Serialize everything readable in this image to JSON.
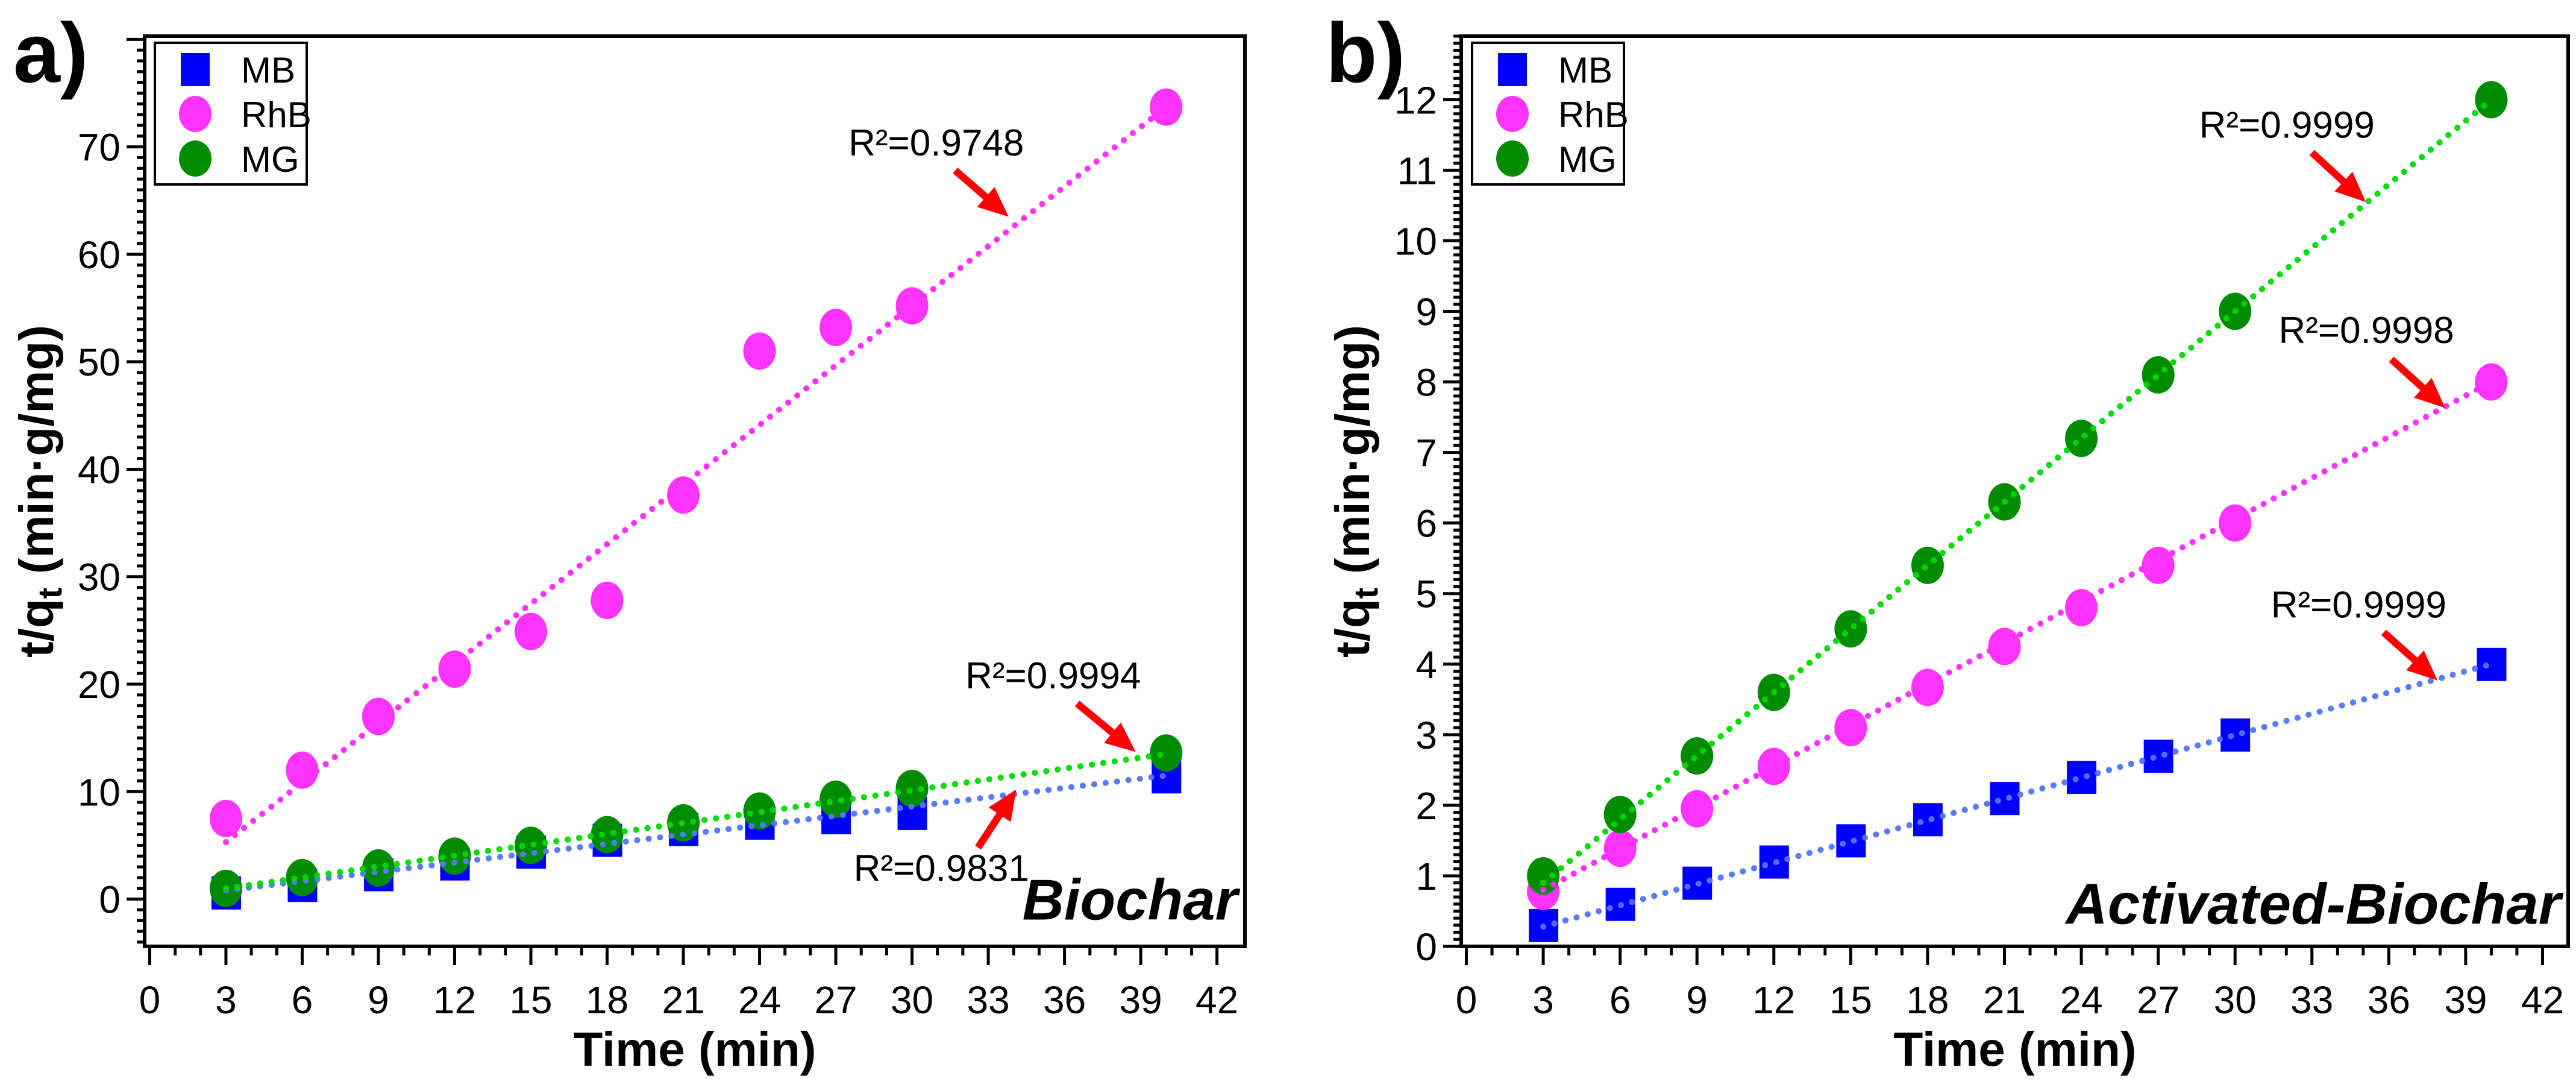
{
  "chart_data": [
    {
      "type": "scatter",
      "panel_label": "a)",
      "tag": "Biochar",
      "xlabel": "Time (min)",
      "ylabel": "t/q",
      "ylabel_sub": "t",
      "ylabel_unit": " (min·g/mg)",
      "xlim": [
        -0.2,
        43.1
      ],
      "ylim": [
        -4.4,
        80.3
      ],
      "xticks": [
        0,
        3,
        6,
        9,
        12,
        15,
        18,
        21,
        24,
        27,
        30,
        33,
        36,
        39,
        42
      ],
      "yticks": [
        0,
        10,
        20,
        30,
        40,
        50,
        60,
        70
      ],
      "ymajor": 10,
      "yminor": 1,
      "legend_position": "top-left",
      "x": [
        3,
        6,
        9,
        12,
        15,
        18,
        21,
        24,
        27,
        30,
        40
      ],
      "series": [
        {
          "name": "MB",
          "marker": "square",
          "color": "#0000FF",
          "fit_color": "#5B7BFF",
          "values": [
            0.6,
            1.3,
            2.3,
            3.3,
            4.4,
            5.5,
            6.5,
            7.1,
            7.6,
            8.0,
            11.4
          ],
          "fit": [
            [
              3,
              0.8
            ],
            [
              40,
              11.5
            ]
          ]
        },
        {
          "name": "RhB",
          "marker": "circle",
          "color": "#FF33FF",
          "fit_color": "#FF33FF",
          "values": [
            7.5,
            12.0,
            17.0,
            21.4,
            24.9,
            27.8,
            37.6,
            51.0,
            53.2,
            55.2,
            73.7
          ],
          "fit": [
            [
              3,
              5.3
            ],
            [
              40,
              73.7
            ]
          ]
        },
        {
          "name": "MG",
          "marker": "circle",
          "color": "#008C00",
          "fit_color": "#00DD00",
          "values": [
            1.0,
            2.0,
            2.9,
            4.0,
            5.0,
            6.0,
            7.1,
            8.2,
            9.3,
            10.3,
            13.6
          ],
          "fit": [
            [
              3,
              1.0
            ],
            [
              40,
              13.5
            ]
          ]
        }
      ],
      "annotations": [
        {
          "text": "R²=0.9748",
          "at": [
            27.5,
            69.2
          ],
          "arrow": [
            [
              31.7,
              67.8
            ],
            [
              33.8,
              63.5
            ]
          ]
        },
        {
          "text": "R²=0.9994",
          "at": [
            32.1,
            19.6
          ],
          "arrow": [
            [
              36.5,
              18.2
            ],
            [
              38.8,
              13.7
            ]
          ]
        },
        {
          "text": "R²=0.9831",
          "at": [
            27.7,
            1.7
          ],
          "arrow": [
            [
              32.6,
              4.8
            ],
            [
              34.1,
              10.2
            ]
          ]
        }
      ],
      "arrow_color": "#FF0000"
    },
    {
      "type": "scatter",
      "panel_label": "b)",
      "tag": "Activated-Biochar",
      "xlabel": "Time (min)",
      "ylabel": "t/q",
      "ylabel_sub": "t",
      "ylabel_unit": " (min·g/mg)",
      "xlim": [
        -0.2,
        43.0
      ],
      "ylim": [
        0,
        12.9
      ],
      "xticks": [
        0,
        3,
        6,
        9,
        12,
        15,
        18,
        21,
        24,
        27,
        30,
        33,
        36,
        39,
        42
      ],
      "yticks": [
        0,
        1,
        2,
        3,
        4,
        5,
        6,
        7,
        8,
        9,
        10,
        11,
        12
      ],
      "ymajor": 1,
      "yminor": 0.1,
      "legend_position": "top-left",
      "x": [
        3,
        6,
        9,
        12,
        15,
        18,
        21,
        24,
        27,
        30,
        40
      ],
      "series": [
        {
          "name": "MB",
          "marker": "square",
          "color": "#0000FF",
          "fit_color": "#5B7BFF",
          "values": [
            0.3,
            0.6,
            0.9,
            1.2,
            1.5,
            1.8,
            2.1,
            2.4,
            2.7,
            3.0,
            4.0
          ],
          "fit": [
            [
              3,
              0.28
            ],
            [
              40,
              4.0
            ]
          ]
        },
        {
          "name": "RhB",
          "marker": "circle",
          "color": "#FF33FF",
          "fit_color": "#FF33FF",
          "values": [
            0.78,
            1.39,
            1.95,
            2.55,
            3.1,
            3.67,
            4.25,
            4.8,
            5.4,
            6.0,
            8.0
          ],
          "fit": [
            [
              3,
              0.8
            ],
            [
              40,
              8.0
            ]
          ]
        },
        {
          "name": "MG",
          "marker": "circle",
          "color": "#008C00",
          "fit_color": "#00DD00",
          "values": [
            1.0,
            1.87,
            2.7,
            3.6,
            4.5,
            5.4,
            6.3,
            7.2,
            8.1,
            9.0,
            12.0
          ],
          "fit": [
            [
              3,
              0.9
            ],
            [
              40,
              12.0
            ]
          ]
        }
      ],
      "annotations": [
        {
          "text": "R²=0.9999",
          "at": [
            28.6,
            11.46
          ],
          "arrow": [
            [
              33.0,
              11.25
            ],
            [
              35.1,
              10.55
            ]
          ]
        },
        {
          "text": "R²=0.9998",
          "at": [
            31.7,
            8.55
          ],
          "arrow": [
            [
              36.1,
              8.32
            ],
            [
              38.2,
              7.63
            ]
          ]
        },
        {
          "text": "R²=0.9999",
          "at": [
            31.4,
            4.66
          ],
          "arrow": [
            [
              35.8,
              4.45
            ],
            [
              37.9,
              3.77
            ]
          ]
        }
      ],
      "arrow_color": "#FF0000"
    }
  ]
}
